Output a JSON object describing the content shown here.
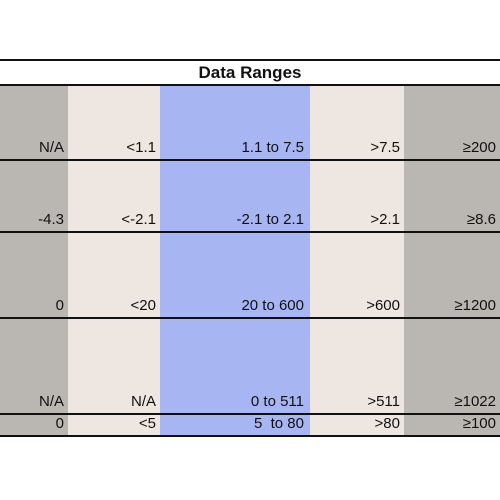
{
  "table": {
    "title": "Data Ranges",
    "rows": [
      [
        "N/A",
        "<1.1",
        "1.1 to 7.5",
        ">7.5",
        "≥200"
      ],
      [
        "-4.3",
        "<-2.1",
        "-2.1 to 2.1",
        ">2.1",
        "≥8.6"
      ],
      [
        "0",
        "<20",
        "20 to 600",
        ">600",
        "≥1200"
      ],
      [
        "N/A",
        "N/A",
        "0 to 511",
        ">511",
        "≥1022"
      ],
      [
        "0",
        "<5",
        "5  to 80",
        ">80",
        "≥100"
      ]
    ]
  },
  "colors": {
    "gray": "#bab6b1",
    "beige": "#eee7e1",
    "blue": "#a8b5f3",
    "border": "#111111"
  }
}
